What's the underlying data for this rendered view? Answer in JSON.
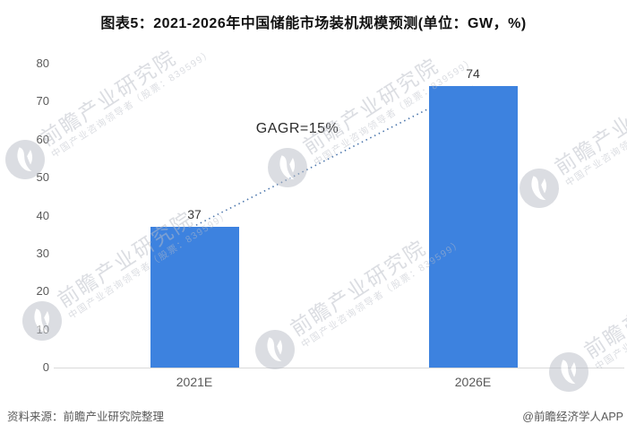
{
  "title": "图表5：2021-2026年中国储能市场装机规模预测(单位：GW，%)",
  "chart_data": {
    "type": "bar",
    "categories": [
      "2021E",
      "2026E"
    ],
    "values": [
      37,
      74
    ],
    "value_labels": [
      "37",
      "74"
    ],
    "annotation": "GAGR=15%",
    "title": "图表5：2021-2026年中国储能市场装机规模预测(单位：GW，%)",
    "xlabel": "",
    "ylabel": "",
    "ylim": [
      0,
      80
    ],
    "yticks": [
      0,
      10,
      20,
      30,
      40,
      50,
      60,
      70,
      80
    ],
    "grid": false,
    "legend": false,
    "bar_color": "#3d82df",
    "trend_line_color": "#4d77ad",
    "trend_line_style": "dotted"
  },
  "footer": {
    "source": "资料来源：前瞻产业研究院整理",
    "brand": "@前瞻经济学人APP"
  },
  "watermark": {
    "big_text": "前瞻产业研究院",
    "small_text": "中国产业咨询领导者（股票：839599）",
    "logo": "qianzhan-logo-icon"
  },
  "colors": {
    "background": "#ffffff",
    "axis_line": "#d9d9d9",
    "tick_text": "#595959",
    "title_text": "#111111",
    "value_text": "#3a3a3a",
    "watermark": "#b9bdc6"
  }
}
